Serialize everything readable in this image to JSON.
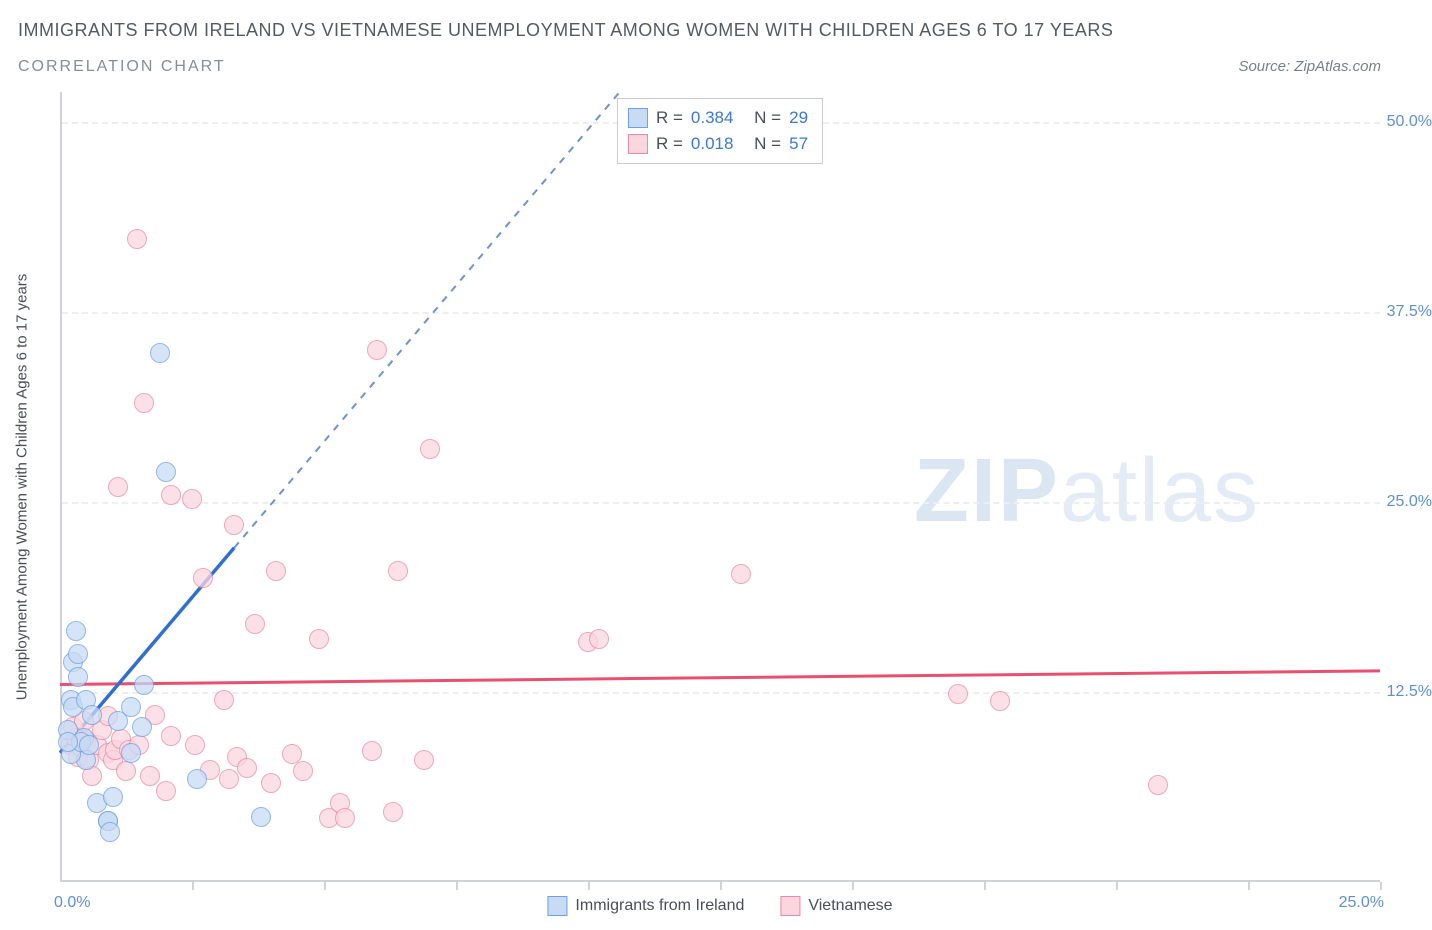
{
  "title": "IMMIGRANTS FROM IRELAND VS VIETNAMESE UNEMPLOYMENT AMONG WOMEN WITH CHILDREN AGES 6 TO 17 YEARS",
  "subtitle": "CORRELATION CHART",
  "source_label": "Source: ZipAtlas.com",
  "watermark_bold": "ZIP",
  "watermark_thin": "atlas",
  "chart": {
    "type": "scatter",
    "x_axis_max_label": "25.0%",
    "x_axis_origin_label": "0.0%",
    "y_axis_title": "Unemployment Among Women with Children Ages 6 to 17 years",
    "xlim": [
      0,
      25
    ],
    "ylim": [
      0,
      52
    ],
    "y_ticks": [
      12.5,
      25.0,
      37.5,
      50.0
    ],
    "y_tick_labels": [
      "12.5%",
      "25.0%",
      "37.5%",
      "50.0%"
    ],
    "x_tick_positions": [
      2.5,
      5.0,
      7.5,
      10.0,
      12.5,
      15.0,
      17.5,
      20.0,
      22.5,
      25.0
    ],
    "grid_color": "#eceef1",
    "axis_color": "#cfd3d8",
    "label_color": "#5e8fd6",
    "background_color": "#ffffff",
    "marker_radius": 10,
    "marker_stroke_width": 1.5,
    "series": [
      {
        "name": "Immigrants from Ireland",
        "fill": "#c7dbf5",
        "stroke": "#6fa0e0",
        "opacity": 0.75,
        "R": "0.384",
        "N": "29",
        "trend_solid": {
          "x1": 0.0,
          "y1": 8.5,
          "x2": 3.3,
          "y2": 22.0
        },
        "trend_dash": {
          "x1": 3.3,
          "y1": 22.0,
          "x2": 10.6,
          "y2": 52.0
        },
        "points": [
          [
            0.15,
            10.0
          ],
          [
            0.2,
            12.0
          ],
          [
            0.25,
            11.5
          ],
          [
            0.25,
            14.5
          ],
          [
            0.35,
            13.5
          ],
          [
            0.3,
            16.5
          ],
          [
            0.35,
            15.0
          ],
          [
            0.5,
            12.0
          ],
          [
            0.45,
            9.5
          ],
          [
            0.6,
            11.0
          ],
          [
            0.5,
            8.0
          ],
          [
            0.7,
            5.2
          ],
          [
            0.9,
            4.0
          ],
          [
            0.9,
            4.0
          ],
          [
            0.95,
            3.3
          ],
          [
            1.1,
            10.6
          ],
          [
            1.35,
            8.5
          ],
          [
            1.35,
            11.5
          ],
          [
            1.55,
            10.2
          ],
          [
            1.0,
            5.6
          ],
          [
            1.6,
            13.0
          ],
          [
            1.9,
            34.8
          ],
          [
            2.0,
            27.0
          ],
          [
            2.6,
            6.8
          ],
          [
            3.8,
            4.3
          ],
          [
            0.2,
            8.4
          ],
          [
            0.4,
            9.2
          ],
          [
            0.15,
            9.2
          ],
          [
            0.55,
            9.0
          ]
        ]
      },
      {
        "name": "Vietnamese",
        "fill": "#fcd6df",
        "stroke": "#ea8aa6",
        "opacity": 0.75,
        "R": "0.018",
        "N": "57",
        "trend_solid": {
          "x1": 0.0,
          "y1": 13.0,
          "x2": 25.0,
          "y2": 13.9
        },
        "points": [
          [
            0.2,
            9.0
          ],
          [
            0.3,
            9.5
          ],
          [
            0.35,
            8.2
          ],
          [
            0.4,
            8.9
          ],
          [
            0.5,
            9.3
          ],
          [
            0.55,
            8.0
          ],
          [
            0.7,
            9.0
          ],
          [
            0.8,
            10.0
          ],
          [
            0.6,
            7.0
          ],
          [
            0.9,
            8.5
          ],
          [
            1.0,
            8.0
          ],
          [
            1.05,
            8.7
          ],
          [
            1.1,
            26.0
          ],
          [
            1.15,
            9.4
          ],
          [
            1.3,
            8.7
          ],
          [
            1.5,
            9.0
          ],
          [
            1.45,
            42.3
          ],
          [
            1.6,
            31.5
          ],
          [
            1.7,
            7.0
          ],
          [
            1.8,
            11.0
          ],
          [
            2.0,
            6.0
          ],
          [
            2.1,
            25.5
          ],
          [
            2.1,
            9.6
          ],
          [
            2.5,
            25.2
          ],
          [
            2.55,
            9.0
          ],
          [
            2.7,
            20.0
          ],
          [
            2.85,
            7.4
          ],
          [
            3.1,
            12.0
          ],
          [
            3.2,
            6.8
          ],
          [
            3.3,
            23.5
          ],
          [
            3.35,
            8.2
          ],
          [
            3.55,
            7.5
          ],
          [
            3.7,
            17.0
          ],
          [
            4.0,
            6.5
          ],
          [
            4.1,
            20.5
          ],
          [
            4.4,
            8.4
          ],
          [
            4.6,
            7.3
          ],
          [
            4.9,
            16.0
          ],
          [
            5.1,
            4.2
          ],
          [
            5.3,
            5.2
          ],
          [
            5.4,
            4.2
          ],
          [
            5.9,
            8.6
          ],
          [
            6.0,
            35.0
          ],
          [
            6.3,
            4.6
          ],
          [
            6.4,
            20.5
          ],
          [
            6.9,
            8.0
          ],
          [
            7.0,
            28.5
          ],
          [
            10.0,
            15.8
          ],
          [
            10.2,
            16.0
          ],
          [
            12.9,
            20.3
          ],
          [
            17.0,
            12.4
          ],
          [
            17.8,
            11.9
          ],
          [
            20.8,
            6.4
          ],
          [
            0.25,
            10.2
          ],
          [
            0.45,
            10.6
          ],
          [
            0.9,
            10.9
          ],
          [
            1.25,
            7.3
          ]
        ]
      }
    ]
  },
  "stats_box": {
    "r_label": "R =",
    "n_label": "N ="
  },
  "footer_legend": [
    {
      "label": "Immigrants from Ireland",
      "fill": "#c7dbf5",
      "stroke": "#6fa0e0"
    },
    {
      "label": "Vietnamese",
      "fill": "#fcd6df",
      "stroke": "#ea8aa6"
    }
  ]
}
